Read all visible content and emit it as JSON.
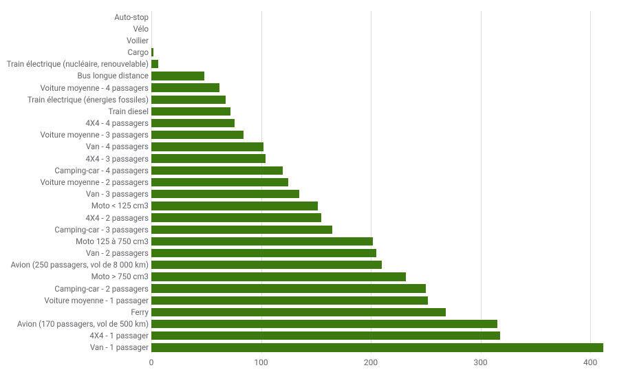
{
  "chart": {
    "type": "bar-horizontal",
    "background_color": "#ffffff",
    "grid_color": "#e0e0e0",
    "label_color": "#5f6368",
    "label_fontsize": 11.5,
    "tick_fontsize": 12,
    "bar_color": "#3c7a0f",
    "xlim": [
      0,
      420
    ],
    "xtick_step": 100,
    "xticks": [
      0,
      100,
      200,
      300,
      400
    ],
    "bar_thickness_ratio": 0.72,
    "categories": [
      "Auto-stop",
      "Vélo",
      "Voilier",
      "Cargo",
      "Train électrique (nucléaire, renouvelable)",
      "Bus longue distance",
      "Voiture moyenne - 4 passagers",
      "Train électrique (énergies fossiles)",
      "Train diesel",
      "4X4 - 4 passagers",
      "Voiture moyenne - 3 passagers",
      "Van - 4 passagers",
      "4X4 - 3 passagers",
      "Camping-car - 4 passagers",
      "Voiture moyenne - 2 passagers",
      "Van - 3 passagers",
      "Moto < 125 cm3",
      "4X4 - 2 passagers",
      "Camping-car - 3 passagers",
      "Moto 125 à 750 cm3",
      "Van - 2 passagers",
      "Avion (250 passagers, vol de 8 000 km)",
      "Moto > 750 cm3",
      "Camping-car - 2 passagers",
      "Voiture moyenne - 1 passager",
      "Ferry",
      "Avion (170 passagers, vol de 500 km)",
      "4X4 - 1 passager",
      "Van - 1 passager"
    ],
    "values": [
      0,
      0,
      0,
      2,
      6,
      48,
      62,
      68,
      72,
      76,
      84,
      102,
      104,
      120,
      125,
      135,
      152,
      155,
      165,
      202,
      205,
      210,
      232,
      250,
      252,
      268,
      315,
      318,
      412
    ]
  }
}
